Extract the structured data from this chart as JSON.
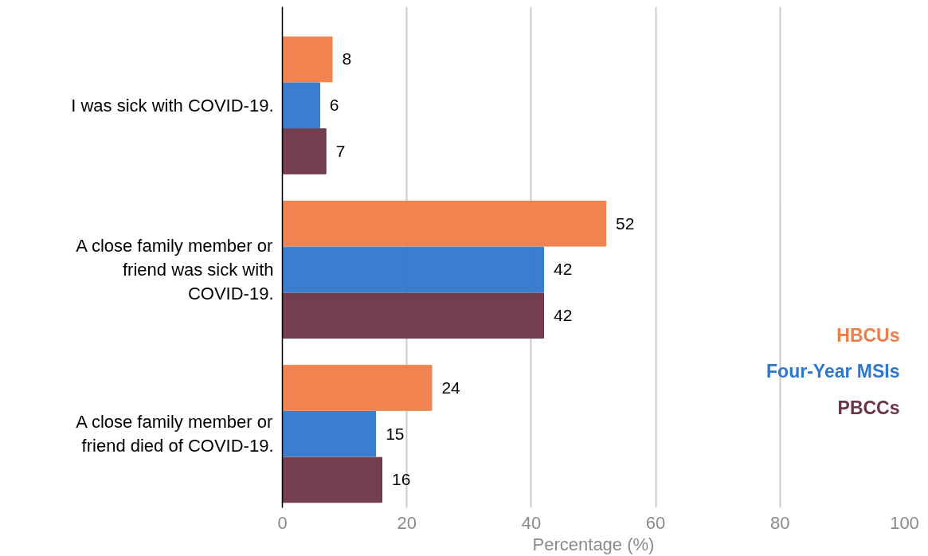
{
  "chart_data": {
    "type": "bar",
    "orientation": "horizontal",
    "xlabel": "Percentage (%)",
    "categories": [
      "I was sick with COVID-19.",
      "A close family member or friend was sick with COVID-19.",
      "A close family member or friend died of COVID-19."
    ],
    "series": [
      {
        "name": "HBCUs",
        "color": "#f07d48",
        "values": [
          8,
          52,
          24
        ]
      },
      {
        "name": "Four-Year MSIs",
        "color": "#2e77cc",
        "values": [
          6,
          42,
          15
        ]
      },
      {
        "name": "PBCCs",
        "color": "#6b3443",
        "values": [
          7,
          42,
          16
        ]
      }
    ],
    "xlim": [
      0,
      100
    ],
    "xticks": [
      0,
      20,
      40,
      60,
      80,
      100
    ],
    "grid": "x",
    "legend": "right",
    "data_labels": true
  }
}
